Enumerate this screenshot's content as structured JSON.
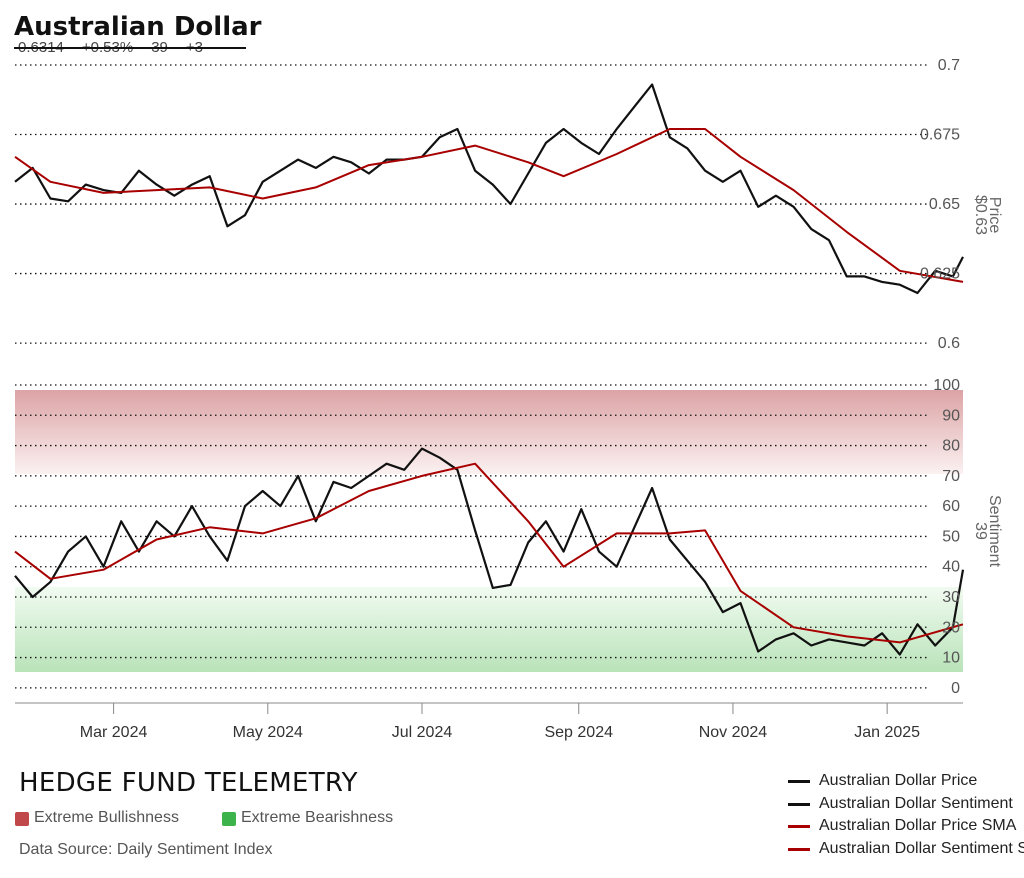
{
  "header": {
    "title": "Australian Dollar",
    "price": "0.6314",
    "change": "+0.53%",
    "sentiment": "39",
    "sentiment_change": "+3"
  },
  "footer": {
    "brand": "HEDGE FUND TELEMETRY",
    "zones": [
      {
        "label": "Extreme Bullishness",
        "color": "#c0484a"
      },
      {
        "label": "Extreme Bearishness",
        "color": "#3cb44b"
      }
    ],
    "source": "Data Source: Daily Sentiment Index"
  },
  "legend": [
    {
      "label": "Australian Dollar Price",
      "color": "#111111"
    },
    {
      "label": "Australian Dollar Sentiment",
      "color": "#111111"
    },
    {
      "label": "Australian Dollar Price SMA",
      "color": "#a80000"
    },
    {
      "label": "Australian Dollar Sentiment SMA",
      "color": "#a80000"
    }
  ],
  "chart_data": {
    "type": "line",
    "x_range": [
      "2024-01-22",
      "2025-01-31"
    ],
    "x_ticks": [
      "Mar 2024",
      "May 2024",
      "Jul 2024",
      "Sep 2024",
      "Nov 2024",
      "Jan 2025"
    ],
    "panels": [
      {
        "name": "price",
        "axis_title": "Price",
        "axis_value": "$0.63",
        "ylim": [
          0.595,
          0.7
        ],
        "y_ticks": [
          "0.6",
          "0.625",
          "0.65",
          "0.675",
          "0.7"
        ],
        "series": [
          {
            "name": "Australian Dollar Price",
            "color": "#111111",
            "points": [
              [
                "2024-01-22",
                0.658
              ],
              [
                "2024-01-29",
                0.663
              ],
              [
                "2024-02-05",
                0.652
              ],
              [
                "2024-02-12",
                0.651
              ],
              [
                "2024-02-19",
                0.657
              ],
              [
                "2024-02-26",
                0.655
              ],
              [
                "2024-03-04",
                0.654
              ],
              [
                "2024-03-11",
                0.662
              ],
              [
                "2024-03-18",
                0.657
              ],
              [
                "2024-03-25",
                0.653
              ],
              [
                "2024-04-01",
                0.657
              ],
              [
                "2024-04-08",
                0.66
              ],
              [
                "2024-04-15",
                0.642
              ],
              [
                "2024-04-22",
                0.646
              ],
              [
                "2024-04-29",
                0.658
              ],
              [
                "2024-05-06",
                0.662
              ],
              [
                "2024-05-13",
                0.666
              ],
              [
                "2024-05-20",
                0.663
              ],
              [
                "2024-05-27",
                0.667
              ],
              [
                "2024-06-03",
                0.665
              ],
              [
                "2024-06-10",
                0.661
              ],
              [
                "2024-06-17",
                0.666
              ],
              [
                "2024-06-24",
                0.666
              ],
              [
                "2024-07-01",
                0.667
              ],
              [
                "2024-07-08",
                0.674
              ],
              [
                "2024-07-15",
                0.677
              ],
              [
                "2024-07-22",
                0.662
              ],
              [
                "2024-07-29",
                0.657
              ],
              [
                "2024-08-05",
                0.65
              ],
              [
                "2024-08-12",
                0.661
              ],
              [
                "2024-08-19",
                0.672
              ],
              [
                "2024-08-26",
                0.677
              ],
              [
                "2024-09-02",
                0.672
              ],
              [
                "2024-09-09",
                0.668
              ],
              [
                "2024-09-16",
                0.677
              ],
              [
                "2024-09-23",
                0.685
              ],
              [
                "2024-09-30",
                0.693
              ],
              [
                "2024-10-07",
                0.674
              ],
              [
                "2024-10-14",
                0.67
              ],
              [
                "2024-10-21",
                0.662
              ],
              [
                "2024-10-28",
                0.658
              ],
              [
                "2024-11-04",
                0.662
              ],
              [
                "2024-11-11",
                0.649
              ],
              [
                "2024-11-18",
                0.653
              ],
              [
                "2024-11-25",
                0.649
              ],
              [
                "2024-12-02",
                0.641
              ],
              [
                "2024-12-09",
                0.637
              ],
              [
                "2024-12-16",
                0.624
              ],
              [
                "2024-12-23",
                0.624
              ],
              [
                "2024-12-30",
                0.622
              ],
              [
                "2025-01-06",
                0.621
              ],
              [
                "2025-01-13",
                0.618
              ],
              [
                "2025-01-20",
                0.626
              ],
              [
                "2025-01-27",
                0.624
              ],
              [
                "2025-01-31",
                0.631
              ]
            ]
          },
          {
            "name": "Australian Dollar Price SMA",
            "color": "#a80000",
            "points": [
              [
                "2024-01-22",
                0.667
              ],
              [
                "2024-02-05",
                0.658
              ],
              [
                "2024-02-26",
                0.654
              ],
              [
                "2024-03-18",
                0.655
              ],
              [
                "2024-04-08",
                0.656
              ],
              [
                "2024-04-29",
                0.652
              ],
              [
                "2024-05-20",
                0.656
              ],
              [
                "2024-06-10",
                0.664
              ],
              [
                "2024-07-01",
                0.667
              ],
              [
                "2024-07-22",
                0.671
              ],
              [
                "2024-08-12",
                0.665
              ],
              [
                "2024-08-26",
                0.66
              ],
              [
                "2024-09-16",
                0.668
              ],
              [
                "2024-10-07",
                0.677
              ],
              [
                "2024-10-21",
                0.677
              ],
              [
                "2024-11-04",
                0.667
              ],
              [
                "2024-11-25",
                0.655
              ],
              [
                "2024-12-16",
                0.64
              ],
              [
                "2025-01-06",
                0.626
              ],
              [
                "2025-01-31",
                0.622
              ]
            ]
          }
        ]
      },
      {
        "name": "sentiment",
        "axis_title": "Sentiment",
        "axis_value": "39",
        "ylim": [
          -5,
          100
        ],
        "y_ticks": [
          "0",
          "10",
          "20",
          "30",
          "40",
          "50",
          "60",
          "70",
          "80",
          "90",
          "100"
        ],
        "zones": [
          {
            "label": "Extreme Bullishness",
            "from": 70,
            "to": 100
          },
          {
            "label": "Extreme Bearishness",
            "from": 0,
            "to": 30
          }
        ],
        "series": [
          {
            "name": "Australian Dollar Sentiment",
            "color": "#111111",
            "points": [
              [
                "2024-01-22",
                37
              ],
              [
                "2024-01-29",
                30
              ],
              [
                "2024-02-05",
                35
              ],
              [
                "2024-02-12",
                45
              ],
              [
                "2024-02-19",
                50
              ],
              [
                "2024-02-26",
                40
              ],
              [
                "2024-03-04",
                55
              ],
              [
                "2024-03-11",
                45
              ],
              [
                "2024-03-18",
                55
              ],
              [
                "2024-03-25",
                50
              ],
              [
                "2024-04-01",
                60
              ],
              [
                "2024-04-08",
                50
              ],
              [
                "2024-04-15",
                42
              ],
              [
                "2024-04-22",
                60
              ],
              [
                "2024-04-29",
                65
              ],
              [
                "2024-05-06",
                60
              ],
              [
                "2024-05-13",
                70
              ],
              [
                "2024-05-20",
                55
              ],
              [
                "2024-05-27",
                68
              ],
              [
                "2024-06-03",
                66
              ],
              [
                "2024-06-10",
                70
              ],
              [
                "2024-06-17",
                74
              ],
              [
                "2024-06-24",
                72
              ],
              [
                "2024-07-01",
                79
              ],
              [
                "2024-07-08",
                76
              ],
              [
                "2024-07-15",
                72
              ],
              [
                "2024-07-22",
                52
              ],
              [
                "2024-07-29",
                33
              ],
              [
                "2024-08-05",
                34
              ],
              [
                "2024-08-12",
                48
              ],
              [
                "2024-08-19",
                55
              ],
              [
                "2024-08-26",
                45
              ],
              [
                "2024-09-02",
                59
              ],
              [
                "2024-09-09",
                45
              ],
              [
                "2024-09-16",
                40
              ],
              [
                "2024-09-23",
                53
              ],
              [
                "2024-09-30",
                66
              ],
              [
                "2024-10-07",
                49
              ],
              [
                "2024-10-14",
                42
              ],
              [
                "2024-10-21",
                35
              ],
              [
                "2024-10-28",
                25
              ],
              [
                "2024-11-04",
                28
              ],
              [
                "2024-11-11",
                12
              ],
              [
                "2024-11-18",
                16
              ],
              [
                "2024-11-25",
                18
              ],
              [
                "2024-12-02",
                14
              ],
              [
                "2024-12-09",
                16
              ],
              [
                "2024-12-16",
                15
              ],
              [
                "2024-12-23",
                14
              ],
              [
                "2024-12-30",
                18
              ],
              [
                "2025-01-06",
                11
              ],
              [
                "2025-01-13",
                21
              ],
              [
                "2025-01-20",
                14
              ],
              [
                "2025-01-27",
                20
              ],
              [
                "2025-01-31",
                39
              ]
            ]
          },
          {
            "name": "Australian Dollar Sentiment SMA",
            "color": "#a80000",
            "points": [
              [
                "2024-01-22",
                45
              ],
              [
                "2024-02-05",
                36
              ],
              [
                "2024-02-26",
                39
              ],
              [
                "2024-03-18",
                49
              ],
              [
                "2024-04-08",
                53
              ],
              [
                "2024-04-29",
                51
              ],
              [
                "2024-05-20",
                56
              ],
              [
                "2024-06-10",
                65
              ],
              [
                "2024-07-01",
                70
              ],
              [
                "2024-07-22",
                74
              ],
              [
                "2024-08-12",
                55
              ],
              [
                "2024-08-26",
                40
              ],
              [
                "2024-09-16",
                51
              ],
              [
                "2024-10-07",
                51
              ],
              [
                "2024-10-21",
                52
              ],
              [
                "2024-11-04",
                32
              ],
              [
                "2024-11-25",
                20
              ],
              [
                "2024-12-16",
                17
              ],
              [
                "2025-01-06",
                15
              ],
              [
                "2025-01-31",
                21
              ]
            ]
          }
        ]
      }
    ]
  }
}
